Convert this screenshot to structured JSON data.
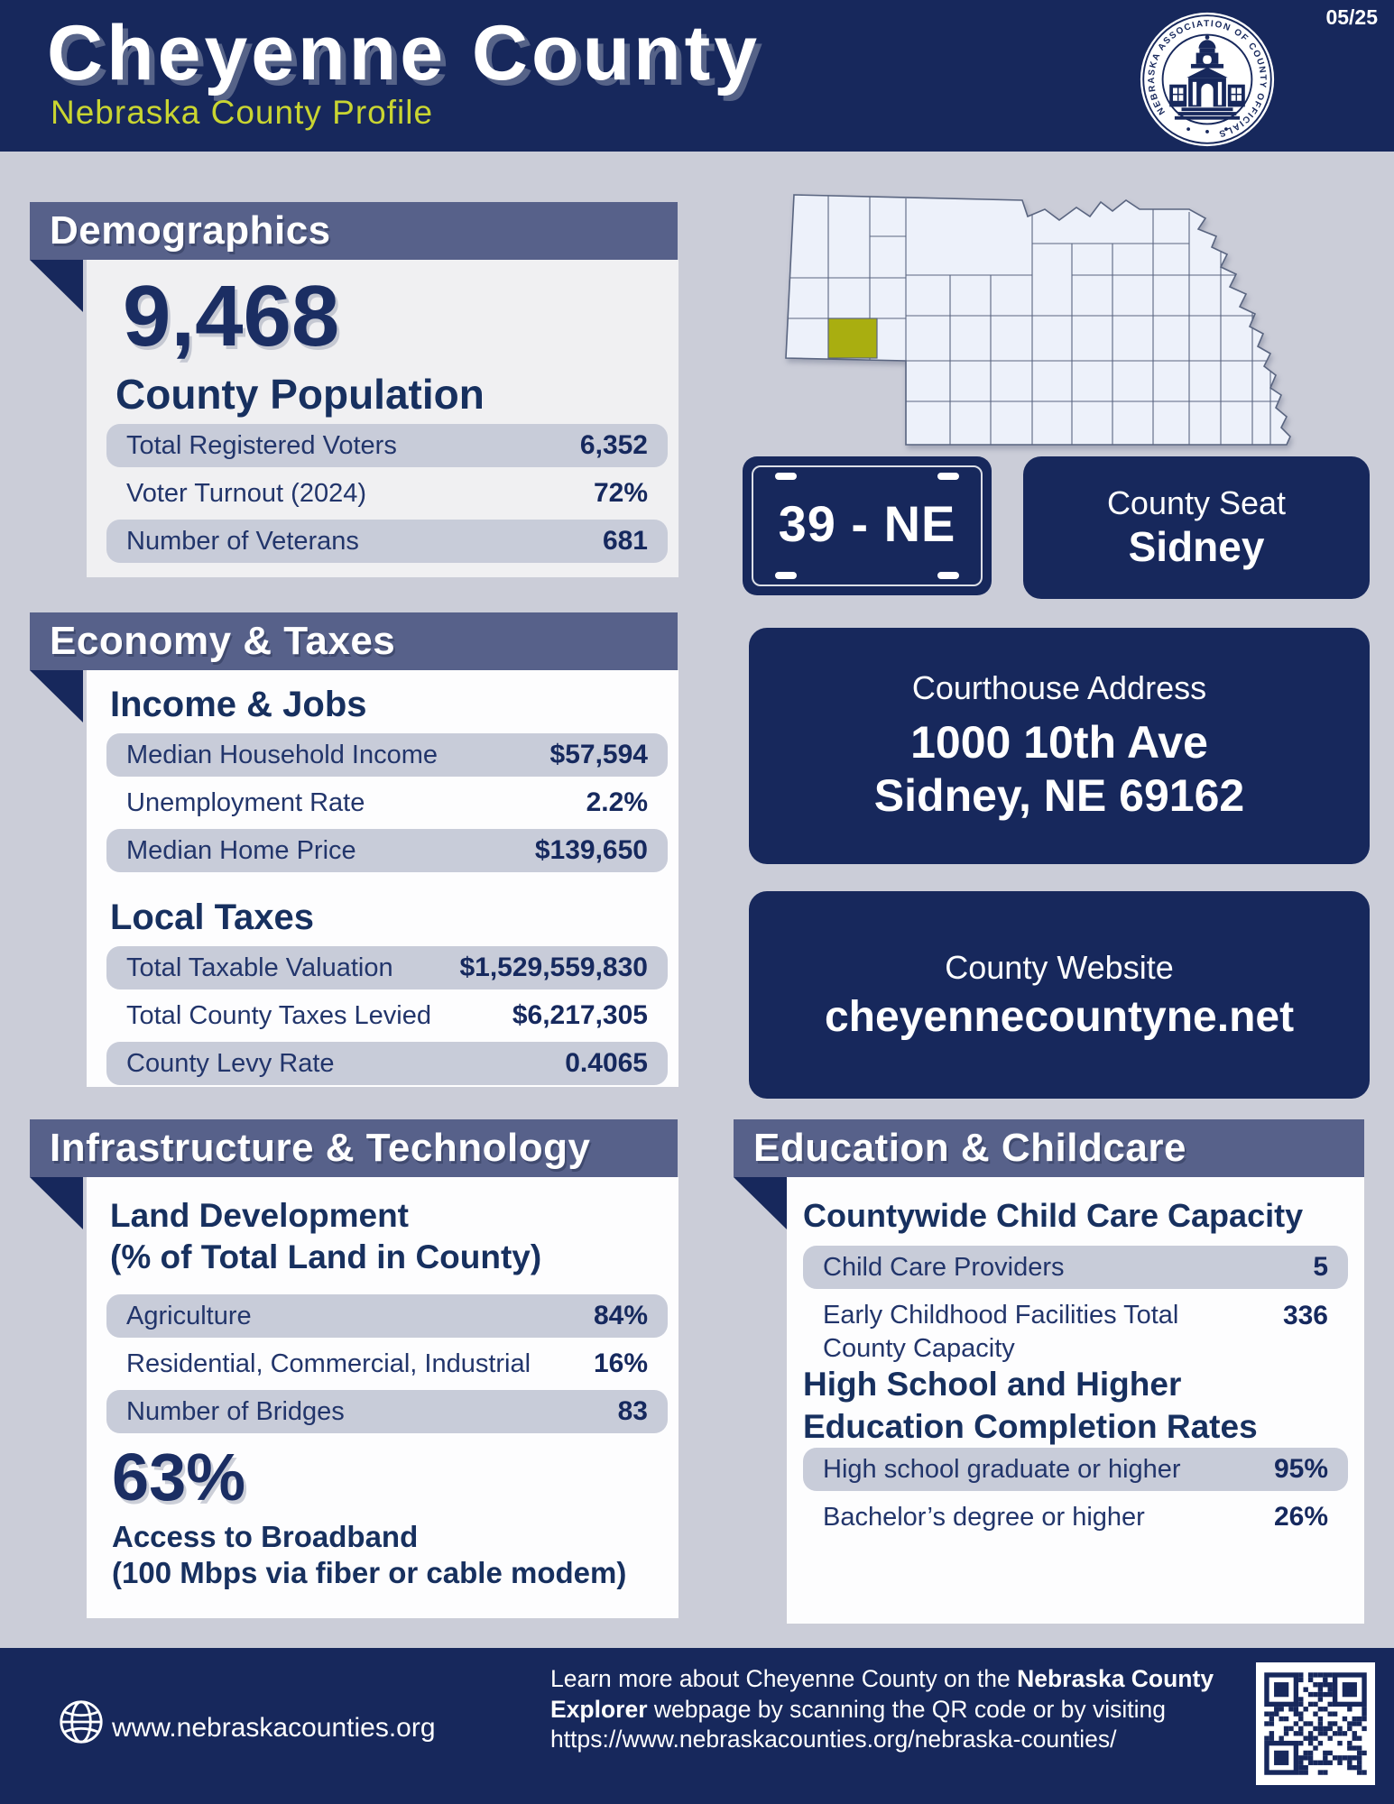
{
  "header": {
    "title": "Cheyenne County",
    "subtitle": "Nebraska County Profile",
    "date_code": "05/25",
    "seal_ring_text": "NEBRASKA ASSOCIATION OF COUNTY OFFICIALS"
  },
  "colors": {
    "navy": "#17285C",
    "slate_bar": "#57618A",
    "page_bg": "#CBCDD8",
    "pill_bg": "#C8CCD9",
    "accent_yellow_green": "#C9D531",
    "county_highlight": "#A9AE10",
    "text_navy": "#16295E"
  },
  "map": {
    "state": "Nebraska",
    "highlighted_county": "Cheyenne",
    "highlight_color": "#A9AE10"
  },
  "demographics": {
    "title": "Demographics",
    "population": {
      "value": "9,468",
      "label": "County Population"
    },
    "rows": [
      {
        "label": "Total Registered Voters",
        "value": "6,352"
      },
      {
        "label": "Voter Turnout (2024)",
        "value": "72%"
      },
      {
        "label": "Number of Veterans",
        "value": "681"
      }
    ]
  },
  "economy": {
    "title": "Economy & Taxes",
    "income_jobs": {
      "title": "Income & Jobs",
      "rows": [
        {
          "label": "Median Household Income",
          "value": "$57,594"
        },
        {
          "label": "Unemployment Rate",
          "value": "2.2%"
        },
        {
          "label": "Median Home Price",
          "value": "$139,650"
        }
      ]
    },
    "local_taxes": {
      "title": "Local Taxes",
      "rows": [
        {
          "label": "Total Taxable Valuation",
          "value": "$1,529,559,830"
        },
        {
          "label": "Total County Taxes Levied",
          "value": "$6,217,305"
        },
        {
          "label": "County Levy Rate",
          "value": "0.4065"
        }
      ]
    }
  },
  "infrastructure": {
    "title": "Infrastructure & Technology",
    "land": {
      "title_line1": "Land Development",
      "title_line2": "(% of Total Land in County)",
      "rows": [
        {
          "label": "Agriculture",
          "value": "84%"
        },
        {
          "label": "Residential, Commercial, Industrial",
          "value": "16%"
        },
        {
          "label": "Number of Bridges",
          "value": "83"
        }
      ]
    },
    "broadband": {
      "value": "63%",
      "label_line1": "Access to Broadband",
      "label_line2": "(100 Mbps via fiber or cable modem)"
    }
  },
  "plate": {
    "number": "39 - NE"
  },
  "county_seat": {
    "label": "County Seat",
    "value": "Sidney"
  },
  "courthouse": {
    "label": "Courthouse Address",
    "address_line1": "1000 10th Ave",
    "address_line2": "Sidney, NE 69162"
  },
  "website": {
    "label": "County Website",
    "value": "cheyennecountyne.net"
  },
  "education": {
    "title": "Education & Childcare",
    "childcare": {
      "title": "Countywide Child Care Capacity",
      "rows": [
        {
          "label": "Child Care Providers",
          "value": "5"
        },
        {
          "label_line1": "Early Childhood Facilities Total",
          "label_line2": "County Capacity",
          "value": "336"
        }
      ]
    },
    "completion": {
      "title_line1": "High School and Higher",
      "title_line2": "Education Completion Rates",
      "rows": [
        {
          "label": "High school graduate or higher",
          "value": "95%"
        },
        {
          "label": "Bachelor’s degree or higher",
          "value": "26%"
        }
      ]
    }
  },
  "footer": {
    "website_label": "www.nebraskacounties.org",
    "line1_normal": "Learn more about Cheyenne County on the ",
    "line1_bold": "Nebraska County",
    "line2_bold": "Explorer",
    "line2_normal": " webpage by scanning the QR code or by visiting",
    "line3": "https://www.nebraskacounties.org/nebraska-counties/"
  }
}
